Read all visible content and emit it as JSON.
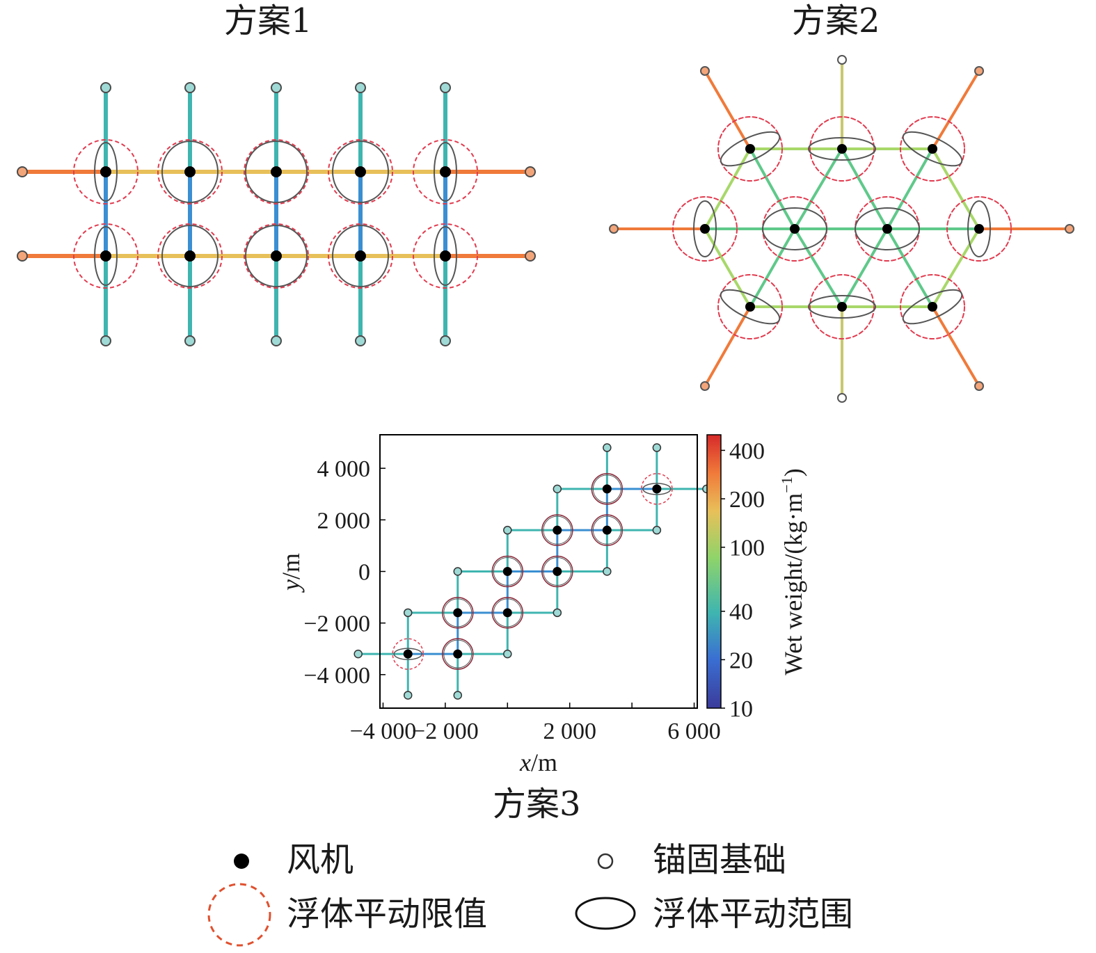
{
  "panels": {
    "scheme1_title": "方案1",
    "scheme2_title": "方案2",
    "scheme3_title": "方案3"
  },
  "chart3": {
    "xlabel_var": "x",
    "xlabel_unit": "/m",
    "ylabel_var": "y",
    "ylabel_unit": "/m",
    "xticks": [
      "−4 000",
      "−2 000",
      "2 000",
      "6 000"
    ],
    "yticks": [
      "4 000",
      "2 000",
      "0",
      "−2 000",
      "−4 000"
    ],
    "colorbar_label": "Wet weight/(kg·m",
    "colorbar_label_exp": "−1",
    "colorbar_label_end": ")",
    "colorbar_ticks": [
      "400",
      "200",
      "100",
      "40",
      "20",
      "10"
    ]
  },
  "chart_data": {
    "type": "scatter",
    "xlabel": "x/m",
    "ylabel": "y/m",
    "xlim": [
      -4100,
      6100
    ],
    "ylim": [
      -5300,
      5300
    ],
    "turbines": [
      [
        -3200,
        -3200
      ],
      [
        -1600,
        -3200
      ],
      [
        -1600,
        -1600
      ],
      [
        0,
        -1600
      ],
      [
        0,
        0
      ],
      [
        1600,
        0
      ],
      [
        1600,
        1600
      ],
      [
        3200,
        1600
      ],
      [
        3200,
        3200
      ],
      [
        4800,
        3200
      ]
    ],
    "anchors": [
      [
        -4800,
        -3200
      ],
      [
        -3200,
        -4800
      ],
      [
        -3200,
        -1600
      ],
      [
        -1600,
        -4800
      ],
      [
        -1600,
        0
      ],
      [
        0,
        -3200
      ],
      [
        0,
        1600
      ],
      [
        1600,
        -1600
      ],
      [
        1600,
        3200
      ],
      [
        3200,
        0
      ],
      [
        3200,
        4800
      ],
      [
        4800,
        1600
      ],
      [
        4800,
        4800
      ],
      [
        6400,
        3200
      ]
    ],
    "colorbar_ticks": [
      400,
      200,
      100,
      40,
      20,
      10
    ]
  },
  "legend": {
    "turbine": "风机",
    "anchor": "锚固基础",
    "limit": "浮体平动限值",
    "range": "浮体平动范围"
  },
  "colors": {
    "teal": "#3fb5b0",
    "blue": "#3a8fd2",
    "orange": "#f07a3a",
    "yellow": "#e8c05a",
    "lightgreen": "#a8d86a",
    "green": "#5fc98a",
    "olive": "#c8c870",
    "limit": "#e23a4e",
    "range": "#555555"
  }
}
